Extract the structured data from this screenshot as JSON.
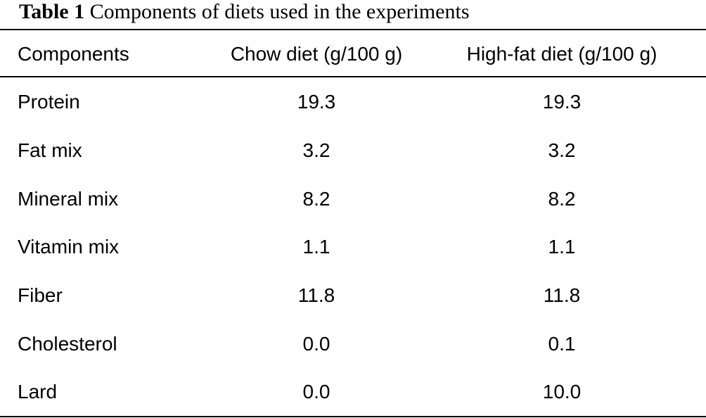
{
  "caption": {
    "label": "Table 1",
    "text": "Components of diets used in the experiments"
  },
  "table": {
    "headers": [
      "Components",
      "Chow diet (g/100 g)",
      "High-fat diet (g/100 g)"
    ],
    "rows": [
      [
        "Protein",
        "19.3",
        "19.3"
      ],
      [
        "Fat mix",
        "3.2",
        "3.2"
      ],
      [
        "Mineral mix",
        "8.2",
        "8.2"
      ],
      [
        "Vitamin mix",
        "1.1",
        "1.1"
      ],
      [
        "Fiber",
        "11.8",
        "11.8"
      ],
      [
        "Cholesterol",
        "0.0",
        "0.1"
      ],
      [
        "Lard",
        "0.0",
        "10.0"
      ]
    ]
  }
}
